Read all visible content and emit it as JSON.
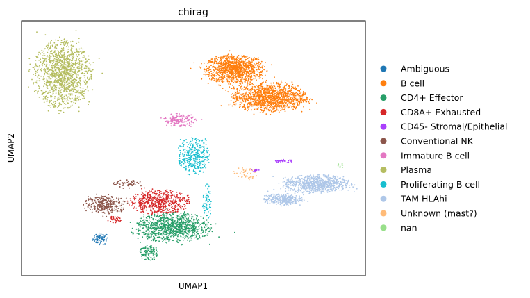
{
  "chart_data": {
    "type": "scatter",
    "title": "chirag",
    "xlabel": "UMAP1",
    "ylabel": "UMAP2",
    "xticks": false,
    "yticks": false,
    "grid": false,
    "legend_position": "right",
    "xlim": [
      0,
      10
    ],
    "ylim": [
      0,
      10
    ],
    "series": [
      {
        "name": "Ambiguous",
        "color": "#1f77b4",
        "clusters": [
          {
            "cx": 2.3,
            "cy": 1.45,
            "rx": 0.22,
            "ry": 0.22,
            "n": 70
          }
        ]
      },
      {
        "name": "B cell",
        "color": "#ff7f0e",
        "clusters": [
          {
            "cx": 6.2,
            "cy": 8.1,
            "rx": 0.85,
            "ry": 0.55,
            "n": 1100
          },
          {
            "cx": 7.2,
            "cy": 7.0,
            "rx": 1.05,
            "ry": 0.55,
            "n": 1300
          }
        ]
      },
      {
        "name": "CD4+ Effector",
        "color": "#279e68",
        "clusters": [
          {
            "cx": 4.4,
            "cy": 1.9,
            "rx": 1.05,
            "ry": 0.55,
            "n": 1000
          },
          {
            "cx": 3.7,
            "cy": 0.9,
            "rx": 0.25,
            "ry": 0.3,
            "n": 120
          }
        ]
      },
      {
        "name": "CD8A+ Exhausted",
        "color": "#d62728",
        "clusters": [
          {
            "cx": 4.0,
            "cy": 2.9,
            "rx": 0.85,
            "ry": 0.45,
            "n": 550
          },
          {
            "cx": 2.7,
            "cy": 2.2,
            "rx": 0.2,
            "ry": 0.12,
            "n": 40
          }
        ]
      },
      {
        "name": "CD45- Stromal/Epithelial",
        "color": "#aa40fc",
        "clusters": [
          {
            "cx": 7.6,
            "cy": 4.5,
            "rx": 0.3,
            "ry": 0.06,
            "n": 40
          },
          {
            "cx": 6.8,
            "cy": 4.15,
            "rx": 0.1,
            "ry": 0.07,
            "n": 15
          }
        ]
      },
      {
        "name": "Conventional NK",
        "color": "#8c564b",
        "clusters": [
          {
            "cx": 2.45,
            "cy": 2.8,
            "rx": 0.6,
            "ry": 0.35,
            "n": 300
          },
          {
            "cx": 3.1,
            "cy": 3.6,
            "rx": 0.45,
            "ry": 0.15,
            "n": 60
          }
        ]
      },
      {
        "name": "Immature B cell",
        "color": "#e377c2",
        "clusters": [
          {
            "cx": 4.6,
            "cy": 6.1,
            "rx": 0.45,
            "ry": 0.25,
            "n": 160
          }
        ]
      },
      {
        "name": "Plasma",
        "color": "#b5bd61",
        "clusters": [
          {
            "cx": 1.2,
            "cy": 7.9,
            "rx": 0.8,
            "ry": 1.3,
            "n": 1300
          }
        ]
      },
      {
        "name": "Proliferating B cell",
        "color": "#17becf",
        "clusters": [
          {
            "cx": 5.0,
            "cy": 4.7,
            "rx": 0.45,
            "ry": 0.7,
            "n": 300
          },
          {
            "cx": 5.4,
            "cy": 2.9,
            "rx": 0.12,
            "ry": 0.7,
            "n": 60
          }
        ]
      },
      {
        "name": "TAM HLAhi",
        "color": "#aec7e8",
        "clusters": [
          {
            "cx": 8.6,
            "cy": 3.6,
            "rx": 0.95,
            "ry": 0.35,
            "n": 800
          },
          {
            "cx": 7.6,
            "cy": 3.0,
            "rx": 0.55,
            "ry": 0.22,
            "n": 300
          }
        ]
      },
      {
        "name": "Unknown (mast?)",
        "color": "#ffbb78",
        "clusters": [
          {
            "cx": 6.5,
            "cy": 4.0,
            "rx": 0.35,
            "ry": 0.25,
            "n": 45
          }
        ]
      },
      {
        "name": "nan",
        "color": "#98df8a",
        "clusters": [
          {
            "cx": 9.3,
            "cy": 4.3,
            "rx": 0.1,
            "ry": 0.1,
            "n": 8
          }
        ]
      }
    ]
  }
}
